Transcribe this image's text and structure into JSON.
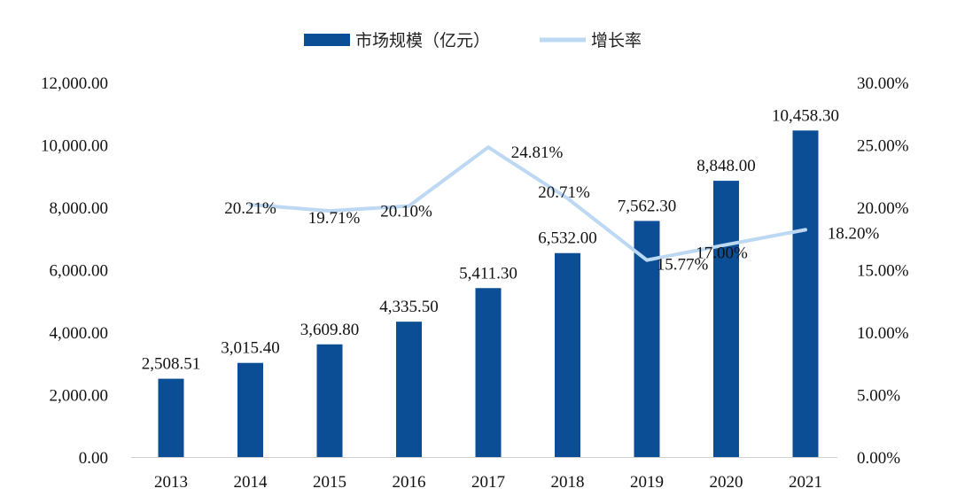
{
  "chart_data": {
    "type": "bar",
    "categories": [
      "2013",
      "2014",
      "2015",
      "2016",
      "2017",
      "2018",
      "2019",
      "2020",
      "2021"
    ],
    "series": [
      {
        "name": "市场规模（亿元）",
        "type": "bar",
        "axis": "left",
        "color": "#0b4e96",
        "values": [
          2508.51,
          3015.4,
          3609.8,
          4335.5,
          5411.3,
          6532.0,
          7562.3,
          8848.0,
          10458.3
        ],
        "labels": [
          "2,508.51",
          "3,015.40",
          "3,609.80",
          "4,335.50",
          "5,411.30",
          "6,532.00",
          "7,562.30",
          "8,848.00",
          "10,458.30"
        ]
      },
      {
        "name": "增长率",
        "type": "line",
        "axis": "right",
        "color": "#bcd8f2",
        "values": [
          null,
          20.21,
          19.71,
          20.1,
          24.81,
          20.71,
          15.77,
          17.0,
          18.2
        ],
        "labels": [
          "",
          "20.21%",
          "19.71%",
          "20.10%",
          "24.81%",
          "20.71%",
          "15.77%",
          "17.00%",
          "18.20%"
        ]
      }
    ],
    "y_left": {
      "range": [
        0,
        12000
      ],
      "ticks": [
        "0.00",
        "2,000.00",
        "4,000.00",
        "6,000.00",
        "8,000.00",
        "10,000.00",
        "12,000.00"
      ]
    },
    "y_right": {
      "range": [
        0,
        30
      ],
      "ticks": [
        "0.00%",
        "5.00%",
        "10.00%",
        "15.00%",
        "20.00%",
        "25.00%",
        "30.00%"
      ]
    },
    "title": "",
    "xlabel": "",
    "ylabel": "",
    "grid": false,
    "legend_position": "top-center"
  }
}
